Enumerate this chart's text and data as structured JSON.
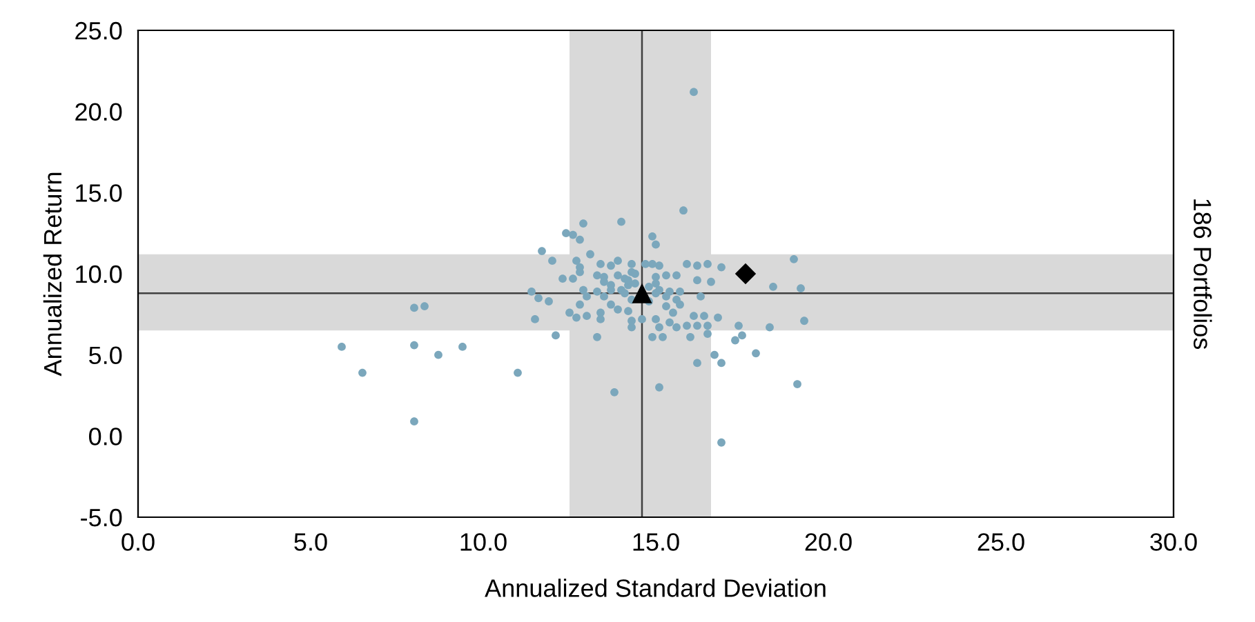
{
  "chart_data": {
    "type": "scatter",
    "xlabel": "Annualized Standard Deviation",
    "ylabel": "Annualized Return",
    "y2label": "186 Portfolios",
    "xlim": [
      0,
      30
    ],
    "ylim": [
      -5,
      25
    ],
    "xticks": [
      {
        "value": 0,
        "label": "0.0"
      },
      {
        "value": 5,
        "label": "5.0"
      },
      {
        "value": 10,
        "label": "10.0"
      },
      {
        "value": 15,
        "label": "15.0"
      },
      {
        "value": 20,
        "label": "20.0"
      },
      {
        "value": 25,
        "label": "25.0"
      },
      {
        "value": 30,
        "label": "30.0"
      }
    ],
    "yticks": [
      {
        "value": -5,
        "label": "-5.0"
      },
      {
        "value": 0,
        "label": "0.0"
      },
      {
        "value": 5,
        "label": "5.0"
      },
      {
        "value": 10,
        "label": "10.0"
      },
      {
        "value": 15,
        "label": "15.0"
      },
      {
        "value": 20,
        "label": "20.0"
      },
      {
        "value": 25,
        "label": "25.0"
      }
    ],
    "grid": false,
    "bands": [
      {
        "axis": "x",
        "from": 12.5,
        "to": 16.6,
        "color": "#d9d9d9"
      },
      {
        "axis": "y",
        "from": 6.5,
        "to": 11.2,
        "color": "#d9d9d9"
      }
    ],
    "ref_lines": [
      {
        "axis": "x",
        "value": 14.6,
        "color": "#404040"
      },
      {
        "axis": "y",
        "value": 8.8,
        "color": "#404040"
      }
    ],
    "series": [
      {
        "color": "#7ba7bc",
        "marker": "circle",
        "x": [
          5.9,
          6.5,
          8.0,
          8.3,
          8.0,
          8.7,
          9.4,
          8.0,
          11.0,
          13.8,
          15.1,
          16.9,
          16.1,
          19.1,
          17.9,
          18.3,
          19.0,
          19.2,
          19.3,
          18.4,
          15.8,
          14.0,
          12.9,
          12.4,
          12.6,
          12.8,
          14.9,
          15.0,
          11.7,
          12.0,
          13.1,
          12.7,
          13.4,
          13.9,
          12.8,
          12.8,
          13.7,
          14.3,
          14.7,
          14.9,
          15.1,
          15.9,
          16.2,
          16.5,
          16.9,
          12.3,
          12.6,
          13.3,
          13.5,
          13.9,
          14.1,
          14.3,
          15.0,
          15.3,
          15.6,
          16.2,
          16.6,
          13.5,
          13.7,
          14.2,
          12.9,
          13.3,
          13.7,
          14.0,
          15.1,
          15.4,
          15.7,
          11.4,
          11.6,
          11.9,
          13.0,
          13.5,
          14.1,
          15.0,
          15.3,
          15.6,
          16.3,
          12.8,
          13.7,
          14.3,
          15.3,
          15.7,
          12.5,
          13.0,
          13.4,
          13.9,
          14.2,
          15.5,
          16.1,
          16.4,
          16.8,
          11.5,
          12.7,
          13.4,
          14.3,
          14.6,
          15.0,
          15.4,
          15.9,
          16.2,
          16.5,
          14.3,
          15.1,
          15.6,
          17.4,
          12.1,
          13.3,
          14.9,
          15.2,
          16.0,
          16.5,
          17.3,
          17.5,
          16.7,
          16.9,
          16.2,
          14.4,
          14.8,
          14.8,
          14.2,
          15.0,
          14.4
        ],
        "values": [
          5.5,
          3.9,
          7.9,
          8.0,
          5.6,
          5.0,
          5.5,
          0.9,
          3.9,
          2.7,
          3.0,
          -0.4,
          21.2,
          3.2,
          5.1,
          6.7,
          10.9,
          9.1,
          7.1,
          9.2,
          13.9,
          13.2,
          13.1,
          12.5,
          12.4,
          12.1,
          12.3,
          11.8,
          11.4,
          10.8,
          11.2,
          10.8,
          10.6,
          10.8,
          10.4,
          10.1,
          10.5,
          10.6,
          10.6,
          10.6,
          10.5,
          10.6,
          10.5,
          10.6,
          10.4,
          9.7,
          9.7,
          9.9,
          9.8,
          9.9,
          9.7,
          10.1,
          9.8,
          9.9,
          9.9,
          9.6,
          9.5,
          9.5,
          9.3,
          9.3,
          9.0,
          8.9,
          9.0,
          9.0,
          9.0,
          8.9,
          8.9,
          8.9,
          8.5,
          8.3,
          8.6,
          8.6,
          8.8,
          8.8,
          8.6,
          8.4,
          8.6,
          8.1,
          8.1,
          8.4,
          8.0,
          8.1,
          7.6,
          7.4,
          7.6,
          7.8,
          7.7,
          7.6,
          7.4,
          7.4,
          7.3,
          7.2,
          7.3,
          7.2,
          7.1,
          7.2,
          7.2,
          7.0,
          6.8,
          6.8,
          6.8,
          6.7,
          6.7,
          6.7,
          6.8,
          6.2,
          6.1,
          6.1,
          6.1,
          6.1,
          6.3,
          5.9,
          6.2,
          5.0,
          4.5,
          4.5,
          9.4,
          9.2,
          8.3,
          9.6,
          9.4,
          10.0
        ]
      },
      {
        "color": "#000000",
        "marker": "triangle",
        "x": [
          14.6
        ],
        "values": [
          8.8
        ]
      },
      {
        "color": "#000000",
        "marker": "diamond",
        "x": [
          17.6
        ],
        "values": [
          10.0
        ]
      }
    ]
  }
}
